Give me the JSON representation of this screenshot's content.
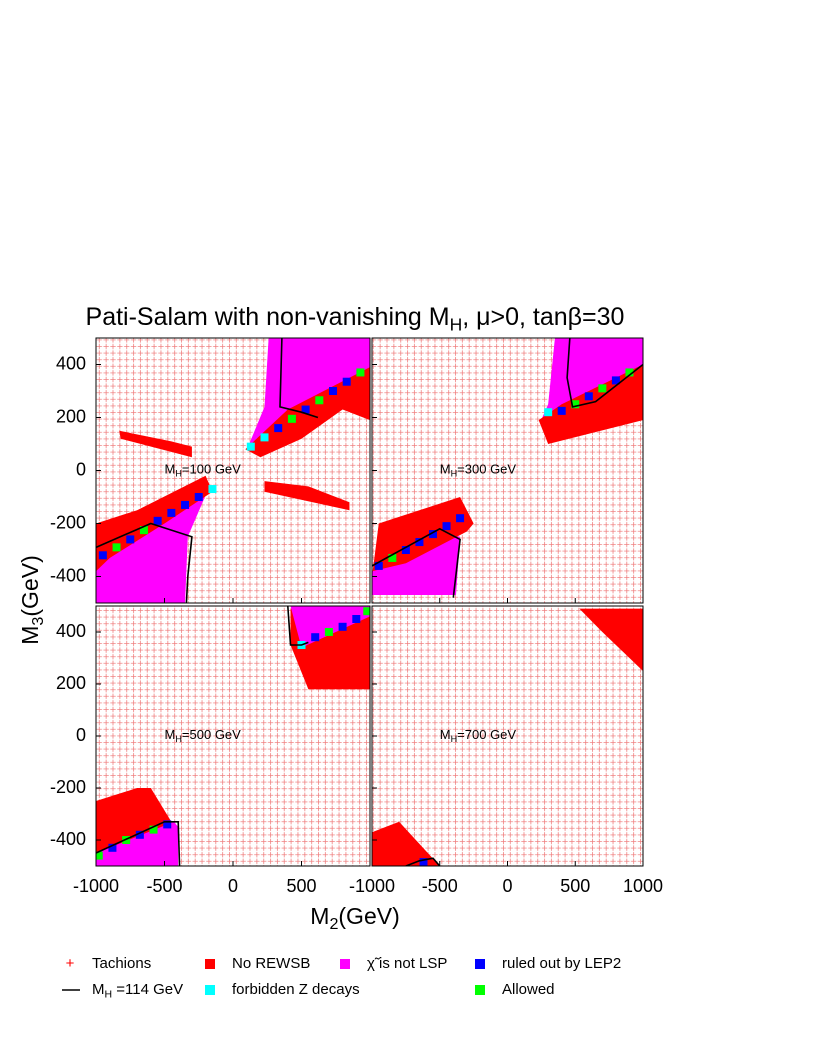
{
  "chart_data": {
    "type": "region",
    "title": [
      "Pati-Salam with non-vanishing M",
      "H",
      ", μ>0, tanβ=30"
    ],
    "xlabel": [
      "M",
      "2",
      "(GeV)"
    ],
    "ylabel": [
      "M",
      "3",
      "(GeV)"
    ],
    "xlim": [
      -1000,
      1000
    ],
    "ylim": [
      -500,
      500
    ],
    "xticks": [
      -1000,
      -500,
      0,
      500,
      1000
    ],
    "yticks": [
      -400,
      -200,
      0,
      200,
      400
    ],
    "series": [
      {
        "name": [
          "Tachions"
        ],
        "color": "#ff0000",
        "marker": "plus"
      },
      {
        "name": [
          "No REWSB"
        ],
        "color": "#ff0000",
        "marker": "square"
      },
      {
        "name": [
          "χ̃ is not LSP"
        ],
        "color": "#ff00ff",
        "marker": "square"
      },
      {
        "name": [
          "ruled out by LEP2"
        ],
        "color": "#0000ff",
        "marker": "square"
      },
      {
        "name": [
          "M",
          "H",
          " =114 GeV"
        ],
        "color": "#000000",
        "marker": "line"
      },
      {
        "name": [
          "forbidden Z decays"
        ],
        "color": "#00ffff",
        "marker": "square"
      },
      {
        "name": [
          "Allowed"
        ],
        "color": "#00ff00",
        "marker": "square"
      }
    ],
    "panels": [
      {
        "annotation": [
          "M",
          "H",
          "=100 GeV"
        ],
        "regions": [
          {
            "series": 2,
            "x": [
              110,
              230,
              260,
              1000,
              1000
            ],
            "y": [
              90,
              240,
              500,
              500,
              380
            ]
          },
          {
            "series": 1,
            "x": [
              90,
              400,
              1000,
              1000,
              800,
              500,
              200
            ],
            "y": [
              80,
              230,
              390,
              190,
              230,
              120,
              50
            ]
          },
          {
            "series": 2,
            "x": [
              -1000,
              -1000,
              -350,
              -330,
              -180,
              -190
            ],
            "y": [
              -340,
              -500,
              -500,
              -250,
              -70,
              -70
            ]
          },
          {
            "series": 1,
            "x": [
              -1000,
              -1000,
              -700,
              -200,
              -150,
              -500,
              -900
            ],
            "y": [
              -380,
              -200,
              -150,
              -20,
              -80,
              -200,
              -330
            ]
          },
          {
            "series": 1,
            "x": [
              -830,
              -820,
              -300,
              -300,
              -450
            ],
            "y": [
              150,
              120,
              50,
              90,
              110
            ]
          },
          {
            "series": 1,
            "x": [
              230,
              550,
              850,
              850,
              230
            ],
            "y": [
              -40,
              -60,
              -120,
              -150,
              -80
            ]
          }
        ],
        "contours": [
          {
            "x": [
              357,
              343,
              500,
              620
            ],
            "y": [
              500,
              240,
              220,
              200
            ]
          },
          {
            "x": [
              -1000,
              -600,
              -300,
              -330,
              -340
            ],
            "y": [
              -290,
              -200,
              -250,
              -400,
              -500
            ]
          }
        ],
        "points": {
          "x": [
            130,
            230,
            330,
            430,
            530,
            630,
            730,
            830,
            930,
            -950,
            -850,
            -750,
            -650,
            -550,
            -450,
            -350,
            -250,
            -150
          ],
          "y": [
            90,
            125,
            160,
            195,
            230,
            265,
            300,
            335,
            370,
            -320,
            -290,
            -260,
            -225,
            -190,
            -160,
            -130,
            -100,
            -70
          ],
          "series": [
            5,
            5,
            3,
            6,
            3,
            6,
            3,
            3,
            6,
            3,
            6,
            3,
            6,
            3,
            3,
            3,
            3,
            5
          ]
        }
      },
      {
        "annotation": [
          "M",
          "H",
          "=300 GeV"
        ],
        "regions": [
          {
            "series": 2,
            "x": [
              240,
              300,
              350,
              1000,
              1000
            ],
            "y": [
              180,
              250,
              500,
              500,
              400
            ]
          },
          {
            "series": 1,
            "x": [
              230,
              400,
              1000,
              1000,
              300
            ],
            "y": [
              190,
              250,
              400,
              190,
              100
            ]
          },
          {
            "series": 2,
            "x": [
              -1000,
              -1000,
              -380,
              -350,
              -500
            ],
            "y": [
              -380,
              -470,
              -470,
              -250,
              -230
            ]
          },
          {
            "series": 1,
            "x": [
              -1000,
              -950,
              -350,
              -250,
              -300,
              -750,
              -1000
            ],
            "y": [
              -400,
              -200,
              -100,
              -200,
              -230,
              -350,
              -380
            ]
          }
        ],
        "contours": [
          {
            "x": [
              460,
              440,
              480,
              650,
              1000
            ],
            "y": [
              500,
              350,
              240,
              260,
              400
            ]
          },
          {
            "x": [
              -1000,
              -500,
              -350,
              -400
            ],
            "y": [
              -360,
              -220,
              -260,
              -480
            ]
          }
        ],
        "points": {
          "x": [
            300,
            400,
            500,
            600,
            700,
            800,
            900,
            -950,
            -850,
            -750,
            -650,
            -550,
            -450,
            -350
          ],
          "y": [
            220,
            225,
            250,
            280,
            310,
            340,
            370,
            -360,
            -330,
            -300,
            -270,
            -240,
            -210,
            -180
          ],
          "series": [
            5,
            3,
            6,
            3,
            6,
            3,
            6,
            3,
            6,
            3,
            3,
            3,
            3,
            3
          ]
        }
      },
      {
        "annotation": [
          "M",
          "H",
          "=500 GeV"
        ],
        "regions": [
          {
            "series": 1,
            "x": [
              420,
              1000,
              1000,
              550,
              420
            ],
            "y": [
              490,
              490,
              180,
              180,
              350
            ]
          },
          {
            "series": 2,
            "x": [
              420,
              1000,
              1000,
              500
            ],
            "y": [
              500,
              500,
              460,
              340
            ]
          },
          {
            "series": 1,
            "x": [
              -1000,
              -700,
              -600,
              -450,
              -400,
              -1000
            ],
            "y": [
              -250,
              -200,
              -200,
              -330,
              -500,
              -500
            ]
          },
          {
            "series": 2,
            "x": [
              -1000,
              -430,
              -400,
              -400,
              -1000
            ],
            "y": [
              -450,
              -330,
              -350,
              -500,
              -500
            ]
          }
        ],
        "contours": [
          {
            "x": [
              400,
              420,
              500,
              550
            ],
            "y": [
              500,
              350,
              350,
              360
            ]
          },
          {
            "x": [
              -1000,
              -500,
              -400,
              -390
            ],
            "y": [
              -450,
              -330,
              -330,
              -500
            ]
          }
        ],
        "points": {
          "x": [
            500,
            600,
            700,
            800,
            900,
            980,
            -980,
            -880,
            -780,
            -680,
            -580,
            -480
          ],
          "y": [
            350,
            380,
            400,
            420,
            450,
            480,
            -460,
            -430,
            -400,
            -380,
            -360,
            -340
          ],
          "series": [
            5,
            3,
            6,
            3,
            3,
            6,
            6,
            3,
            6,
            3,
            6,
            3
          ]
        }
      },
      {
        "annotation": [
          "M",
          "H",
          "=700 GeV"
        ],
        "regions": [
          {
            "series": 1,
            "x": [
              530,
              1000,
              1000,
              700
            ],
            "y": [
              490,
              490,
              250,
              400
            ]
          },
          {
            "series": 1,
            "x": [
              -1000,
              -800,
              -500,
              -1000
            ],
            "y": [
              -370,
              -330,
              -500,
              -500
            ]
          }
        ],
        "contours": [
          {
            "x": [
              -750,
              -650,
              -550,
              -500
            ],
            "y": [
              -500,
              -480,
              -470,
              -500
            ]
          }
        ],
        "points": {
          "x": [
            -620
          ],
          "y": [
            -485
          ],
          "series": [
            3
          ]
        }
      }
    ]
  }
}
